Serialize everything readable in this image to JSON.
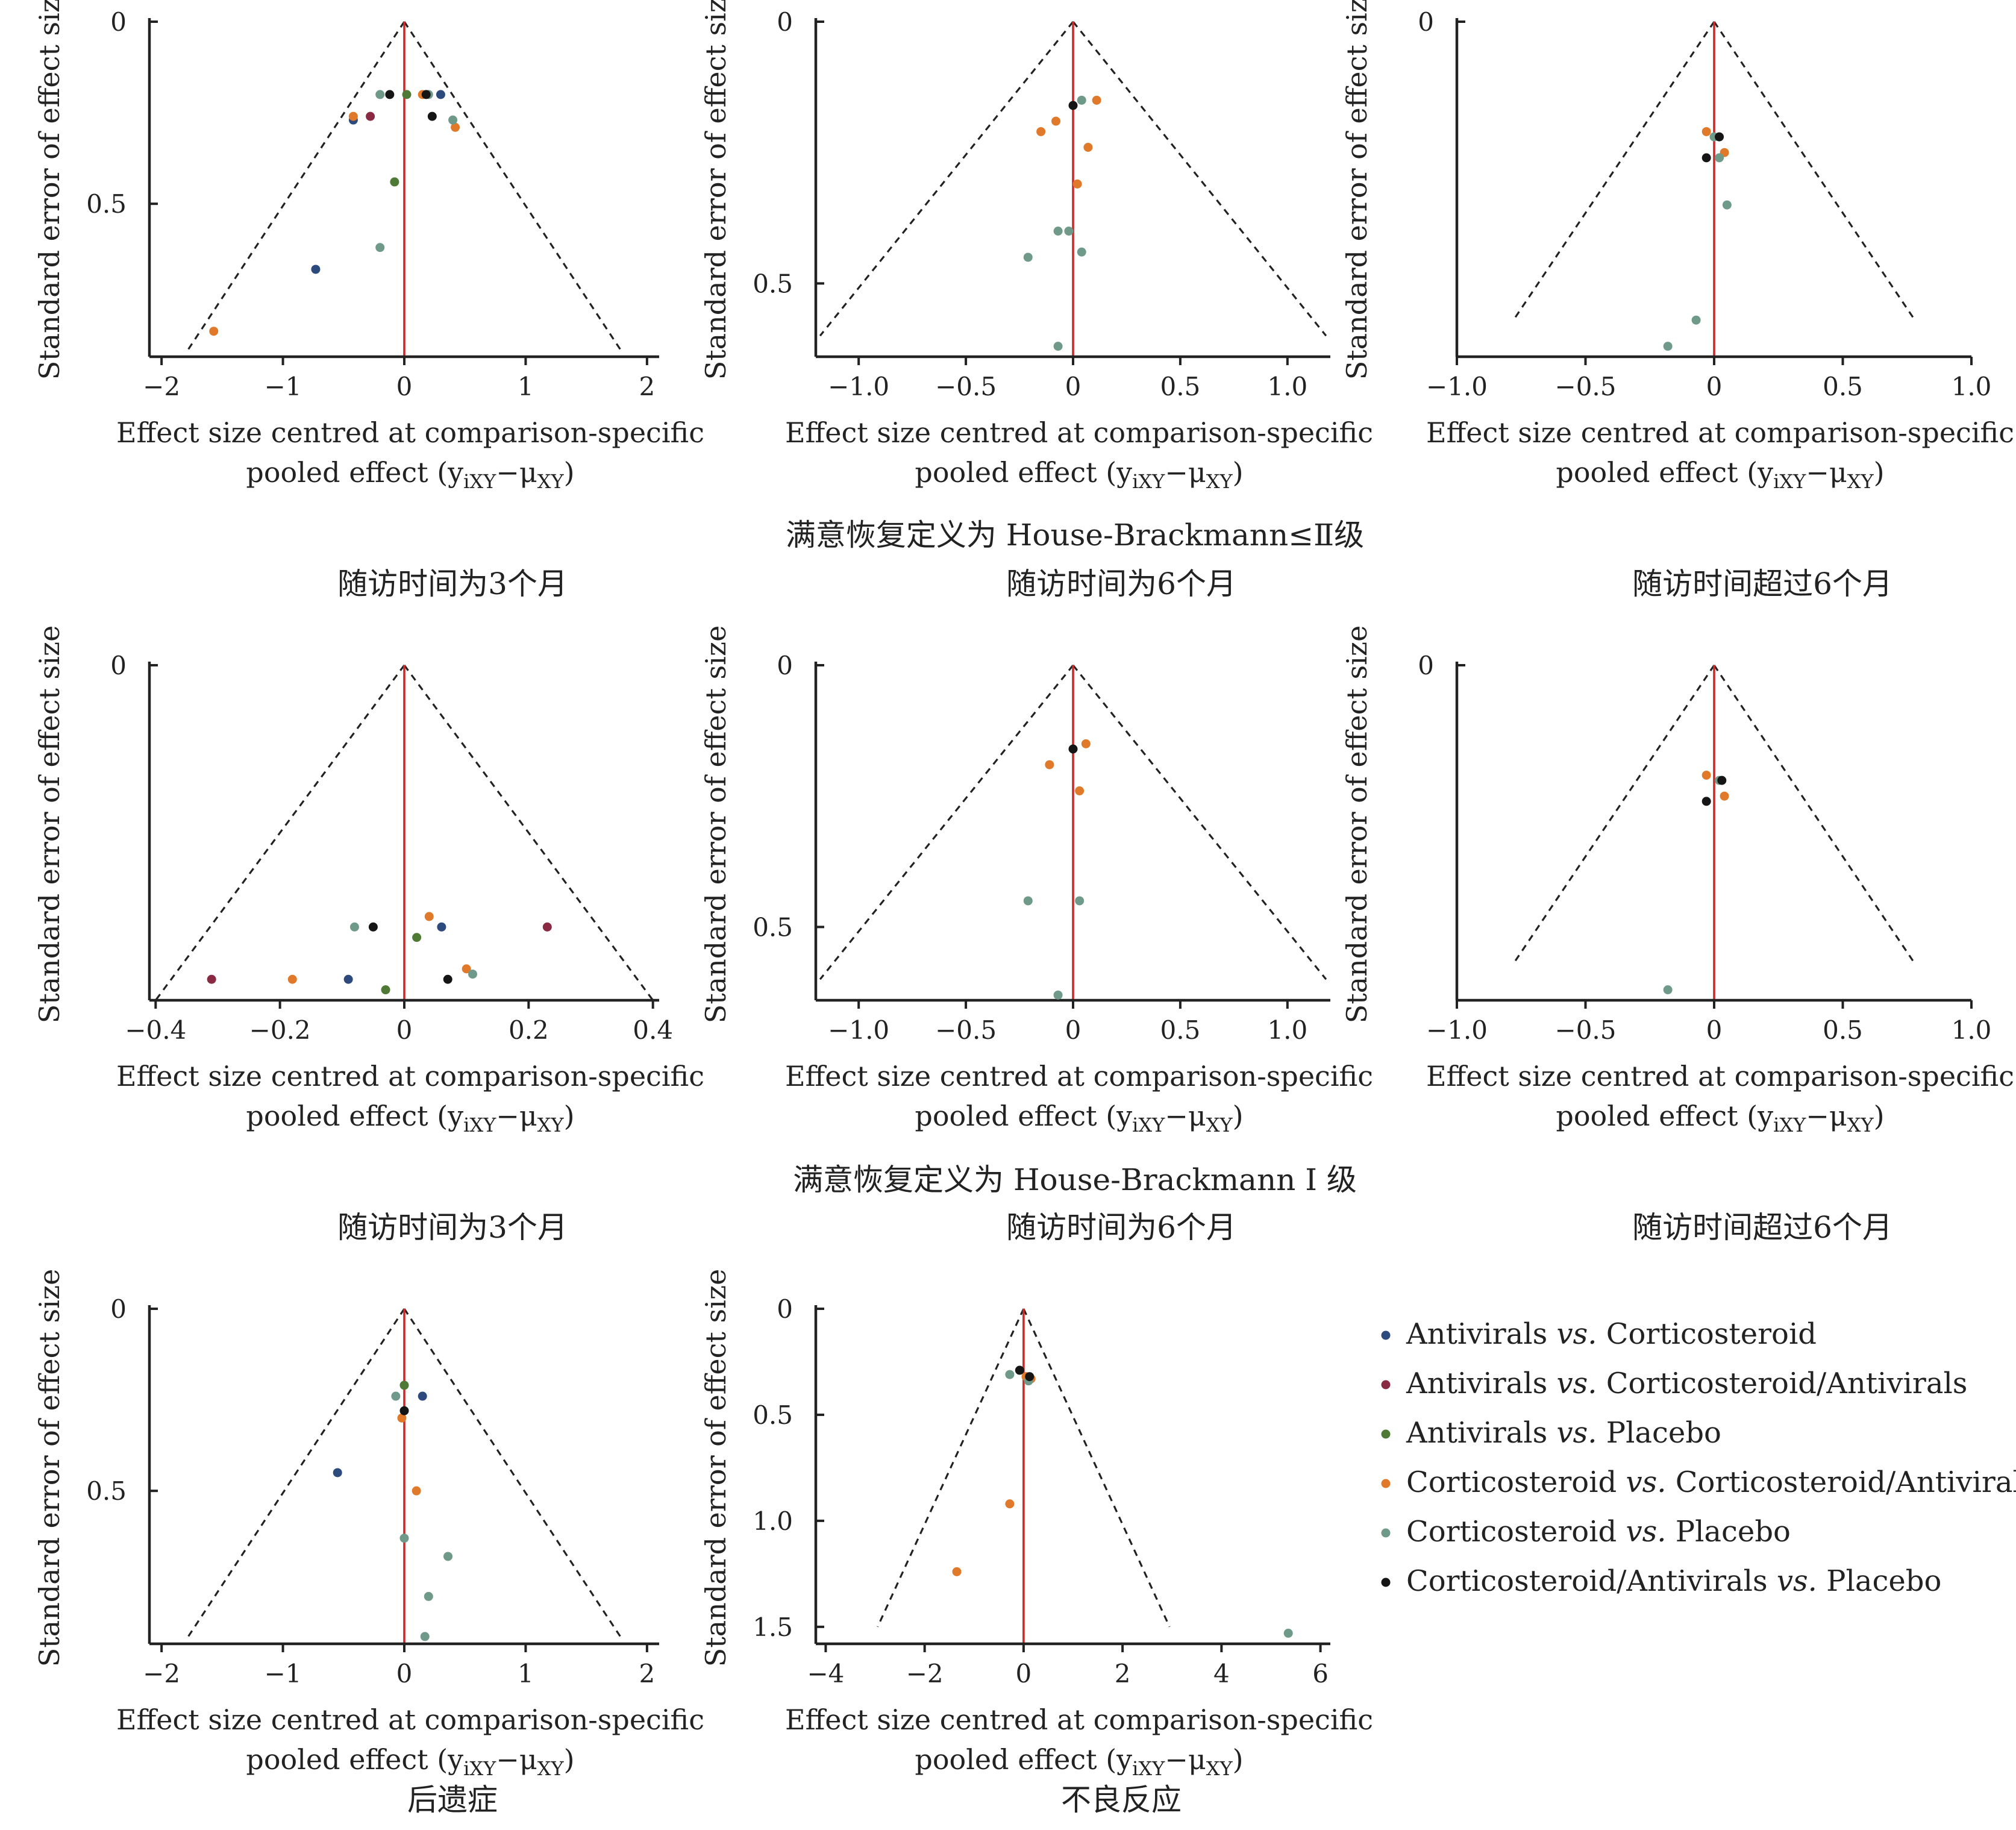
{
  "series_styles": [
    {
      "name": "Antivirals vs. Corticosteroid",
      "parts": [
        "Antivirals ",
        "vs.",
        " Corticosteroid"
      ],
      "color": "#2c4a7c"
    },
    {
      "name": "Antivirals vs. Corticosteroid/Antivirals",
      "parts": [
        "Antivirals ",
        "vs.",
        " Corticosteroid/Antivirals"
      ],
      "color": "#8a2942"
    },
    {
      "name": "Antivirals vs. Placebo",
      "parts": [
        "Antivirals ",
        "vs.",
        " Placebo"
      ],
      "color": "#4e7a35"
    },
    {
      "name": "Corticosteroid vs. Corticosteroid/Antivirals",
      "parts": [
        "Corticosteroid ",
        "vs.",
        " Corticosteroid/Antivirals"
      ],
      "color": "#e07a2a"
    },
    {
      "name": "Corticosteroid vs. Placebo",
      "parts": [
        "Corticosteroid ",
        "vs.",
        " Placebo"
      ],
      "color": "#6f9a8a"
    },
    {
      "name": "Corticosteroid/Antivirals vs. Placebo",
      "parts": [
        "Corticosteroid/Antivirals ",
        "vs.",
        " Placebo"
      ],
      "color": "#151515"
    }
  ],
  "colors": {
    "axis": "#222222",
    "null_line": "#cc2a2a",
    "funnel": "#222222"
  },
  "axis_labels": {
    "y": "Standard error of effect size",
    "x_line1": "Effect size centred at comparison-specific",
    "x_line2_prefix": "pooled effect (y",
    "x_line2_sub1": "iXY",
    "x_line2_mid": "−μ",
    "x_line2_sub2": "XY",
    "x_line2_suffix": ")"
  },
  "row_titles": [
    "满意恢复定义为 House-Brackmann≤Ⅱ级",
    "满意恢复定义为 House-Brackmann Ⅰ 级"
  ],
  "chart_data": [
    {
      "type": "scatter",
      "caption": "随访时间为3个月",
      "xlim": [
        -2.1,
        2.1
      ],
      "ylim": [
        0,
        0.92
      ],
      "funnel_x_at_max": 1.78,
      "funnel_y_max": 0.9,
      "xticks": [
        -2,
        -1,
        0,
        1,
        2
      ],
      "xtick_labels": [
        "−2",
        "−1",
        "0",
        "1",
        "2"
      ],
      "yticks": [
        0,
        0.5
      ],
      "ytick_labels": [
        "0",
        "0.5"
      ],
      "points": [
        {
          "s": 0,
          "x": -0.42,
          "y": 0.27
        },
        {
          "s": 0,
          "x": 0.3,
          "y": 0.2
        },
        {
          "s": 0,
          "x": -0.73,
          "y": 0.68
        },
        {
          "s": 1,
          "x": -0.28,
          "y": 0.26
        },
        {
          "s": 2,
          "x": -0.08,
          "y": 0.44
        },
        {
          "s": 2,
          "x": 0.02,
          "y": 0.2
        },
        {
          "s": 3,
          "x": -0.42,
          "y": 0.26
        },
        {
          "s": 3,
          "x": 0.15,
          "y": 0.2
        },
        {
          "s": 3,
          "x": 0.42,
          "y": 0.29
        },
        {
          "s": 3,
          "x": -1.57,
          "y": 0.85
        },
        {
          "s": 4,
          "x": -0.2,
          "y": 0.2
        },
        {
          "s": 4,
          "x": 0.4,
          "y": 0.27
        },
        {
          "s": 4,
          "x": -0.2,
          "y": 0.62
        },
        {
          "s": 4,
          "x": 0.2,
          "y": 0.2
        },
        {
          "s": 5,
          "x": -0.12,
          "y": 0.2
        },
        {
          "s": 5,
          "x": 0.23,
          "y": 0.26
        },
        {
          "s": 5,
          "x": 0.18,
          "y": 0.2
        }
      ]
    },
    {
      "type": "scatter",
      "caption": "随访时间为6个月",
      "xlim": [
        -1.2,
        1.2
      ],
      "ylim": [
        0,
        0.64
      ],
      "funnel_x_at_max": 1.18,
      "funnel_y_max": 0.6,
      "xticks": [
        -1,
        -0.5,
        0,
        0.5,
        1
      ],
      "xtick_labels": [
        "−1.0",
        "−0.5",
        "0",
        "0.5",
        "1.0"
      ],
      "yticks": [
        0,
        0.5
      ],
      "ytick_labels": [
        "0",
        "0.5"
      ],
      "points": [
        {
          "s": 3,
          "x": -0.15,
          "y": 0.21
        },
        {
          "s": 3,
          "x": -0.08,
          "y": 0.19
        },
        {
          "s": 3,
          "x": 0.11,
          "y": 0.15
        },
        {
          "s": 3,
          "x": 0.07,
          "y": 0.24
        },
        {
          "s": 3,
          "x": 0.02,
          "y": 0.31
        },
        {
          "s": 4,
          "x": 0.04,
          "y": 0.15
        },
        {
          "s": 4,
          "x": -0.07,
          "y": 0.4
        },
        {
          "s": 4,
          "x": -0.02,
          "y": 0.4
        },
        {
          "s": 4,
          "x": -0.21,
          "y": 0.45
        },
        {
          "s": 4,
          "x": 0.04,
          "y": 0.44
        },
        {
          "s": 4,
          "x": -0.07,
          "y": 0.62
        },
        {
          "s": 5,
          "x": 0.0,
          "y": 0.16
        }
      ]
    },
    {
      "type": "scatter",
      "caption": "随访时间超过6个月",
      "xlim": [
        -1.0,
        1.0
      ],
      "ylim": [
        0,
        0.64
      ],
      "funnel_x_at_max": 0.78,
      "funnel_y_max": 0.57,
      "xticks": [
        -1,
        -0.5,
        0,
        0.5,
        1
      ],
      "xtick_labels": [
        "−1.0",
        "−0.5",
        "0",
        "0.5",
        "1.0"
      ],
      "yticks": [
        0
      ],
      "ytick_labels": [
        "0"
      ],
      "points": [
        {
          "s": 3,
          "x": -0.03,
          "y": 0.21
        },
        {
          "s": 3,
          "x": 0.04,
          "y": 0.25
        },
        {
          "s": 4,
          "x": 0.0,
          "y": 0.22
        },
        {
          "s": 4,
          "x": 0.02,
          "y": 0.26
        },
        {
          "s": 4,
          "x": 0.05,
          "y": 0.35
        },
        {
          "s": 4,
          "x": -0.07,
          "y": 0.57
        },
        {
          "s": 4,
          "x": -0.18,
          "y": 0.62
        },
        {
          "s": 5,
          "x": 0.02,
          "y": 0.22
        },
        {
          "s": 5,
          "x": -0.03,
          "y": 0.26
        }
      ]
    },
    {
      "type": "scatter",
      "caption": "随访时间为3个月",
      "xlim": [
        -0.41,
        0.41
      ],
      "ylim": [
        0,
        0.64
      ],
      "funnel_x_at_max": 0.4,
      "funnel_y_max": 0.64,
      "xticks": [
        -0.4,
        -0.2,
        0,
        0.2,
        0.4
      ],
      "xtick_labels": [
        "−0.4",
        "−0.2",
        "0",
        "0.2",
        "0.4"
      ],
      "yticks": [
        0
      ],
      "ytick_labels": [
        "0"
      ],
      "points": [
        {
          "s": 0,
          "x": 0.06,
          "y": 0.5
        },
        {
          "s": 0,
          "x": -0.09,
          "y": 0.6
        },
        {
          "s": 1,
          "x": 0.23,
          "y": 0.5
        },
        {
          "s": 1,
          "x": -0.31,
          "y": 0.6
        },
        {
          "s": 2,
          "x": 0.02,
          "y": 0.52
        },
        {
          "s": 2,
          "x": -0.03,
          "y": 0.62
        },
        {
          "s": 3,
          "x": 0.04,
          "y": 0.48
        },
        {
          "s": 3,
          "x": 0.1,
          "y": 0.58
        },
        {
          "s": 3,
          "x": -0.18,
          "y": 0.6
        },
        {
          "s": 4,
          "x": -0.08,
          "y": 0.5
        },
        {
          "s": 4,
          "x": 0.11,
          "y": 0.59
        },
        {
          "s": 5,
          "x": -0.05,
          "y": 0.5
        },
        {
          "s": 5,
          "x": 0.07,
          "y": 0.6
        }
      ]
    },
    {
      "type": "scatter",
      "caption": "随访时间为6个月",
      "xlim": [
        -1.2,
        1.2
      ],
      "ylim": [
        0,
        0.64
      ],
      "funnel_x_at_max": 1.18,
      "funnel_y_max": 0.6,
      "xticks": [
        -1,
        -0.5,
        0,
        0.5,
        1
      ],
      "xtick_labels": [
        "−1.0",
        "−0.5",
        "0",
        "0.5",
        "1.0"
      ],
      "yticks": [
        0,
        0.5
      ],
      "ytick_labels": [
        "0",
        "0.5"
      ],
      "points": [
        {
          "s": 3,
          "x": -0.11,
          "y": 0.19
        },
        {
          "s": 3,
          "x": 0.06,
          "y": 0.15
        },
        {
          "s": 3,
          "x": 0.03,
          "y": 0.24
        },
        {
          "s": 4,
          "x": -0.21,
          "y": 0.45
        },
        {
          "s": 4,
          "x": 0.03,
          "y": 0.45
        },
        {
          "s": 4,
          "x": -0.07,
          "y": 0.63
        },
        {
          "s": 5,
          "x": 0.0,
          "y": 0.16
        }
      ]
    },
    {
      "type": "scatter",
      "caption": "随访时间超过6个月",
      "xlim": [
        -1.0,
        1.0
      ],
      "ylim": [
        0,
        0.64
      ],
      "funnel_x_at_max": 0.78,
      "funnel_y_max": 0.57,
      "xticks": [
        -1,
        -0.5,
        0,
        0.5,
        1
      ],
      "xtick_labels": [
        "−1.0",
        "−0.5",
        "0",
        "0.5",
        "1.0"
      ],
      "yticks": [
        0
      ],
      "ytick_labels": [
        "0"
      ],
      "points": [
        {
          "s": 3,
          "x": -0.03,
          "y": 0.21
        },
        {
          "s": 3,
          "x": 0.04,
          "y": 0.25
        },
        {
          "s": 4,
          "x": 0.02,
          "y": 0.22
        },
        {
          "s": 4,
          "x": -0.18,
          "y": 0.62
        },
        {
          "s": 5,
          "x": 0.03,
          "y": 0.22
        },
        {
          "s": 5,
          "x": -0.03,
          "y": 0.26
        }
      ]
    },
    {
      "type": "scatter",
      "caption": "后遗症",
      "xlim": [
        -2.1,
        2.1
      ],
      "ylim": [
        0,
        0.92
      ],
      "funnel_x_at_max": 1.78,
      "funnel_y_max": 0.9,
      "xticks": [
        -2,
        -1,
        0,
        1,
        2
      ],
      "xtick_labels": [
        "−2",
        "−1",
        "0",
        "1",
        "2"
      ],
      "yticks": [
        0,
        0.5
      ],
      "ytick_labels": [
        "0",
        "0.5"
      ],
      "points": [
        {
          "s": 0,
          "x": 0.15,
          "y": 0.24
        },
        {
          "s": 0,
          "x": -0.55,
          "y": 0.45
        },
        {
          "s": 2,
          "x": 0.0,
          "y": 0.21
        },
        {
          "s": 3,
          "x": -0.02,
          "y": 0.3
        },
        {
          "s": 3,
          "x": 0.1,
          "y": 0.5
        },
        {
          "s": 4,
          "x": -0.07,
          "y": 0.24
        },
        {
          "s": 4,
          "x": 0.0,
          "y": 0.63
        },
        {
          "s": 4,
          "x": 0.36,
          "y": 0.68
        },
        {
          "s": 4,
          "x": 0.2,
          "y": 0.79
        },
        {
          "s": 4,
          "x": 0.17,
          "y": 0.9
        },
        {
          "s": 5,
          "x": 0.0,
          "y": 0.28
        }
      ]
    },
    {
      "type": "scatter",
      "caption": "不良反应",
      "xlim": [
        -4.2,
        6.2
      ],
      "ylim": [
        0,
        1.58
      ],
      "funnel_x_at_max": 2.95,
      "funnel_y_max": 1.5,
      "xticks": [
        -4,
        -2,
        0,
        2,
        4,
        6
      ],
      "xtick_labels": [
        "−4",
        "−2",
        "0",
        "2",
        "4",
        "6"
      ],
      "yticks": [
        0,
        0.5,
        1.0,
        1.5
      ],
      "ytick_labels": [
        "0",
        "0.5",
        "1.0",
        "1.5"
      ],
      "points": [
        {
          "s": 3,
          "x": -0.28,
          "y": 0.92
        },
        {
          "s": 3,
          "x": -1.35,
          "y": 1.24
        },
        {
          "s": 3,
          "x": 0.15,
          "y": 0.33
        },
        {
          "s": 3,
          "x": 0.05,
          "y": 0.32
        },
        {
          "s": 4,
          "x": -0.28,
          "y": 0.31
        },
        {
          "s": 4,
          "x": 5.35,
          "y": 1.53
        },
        {
          "s": 4,
          "x": 0.1,
          "y": 0.34
        },
        {
          "s": 5,
          "x": -0.08,
          "y": 0.29
        },
        {
          "s": 5,
          "x": 0.12,
          "y": 0.32
        }
      ]
    }
  ]
}
